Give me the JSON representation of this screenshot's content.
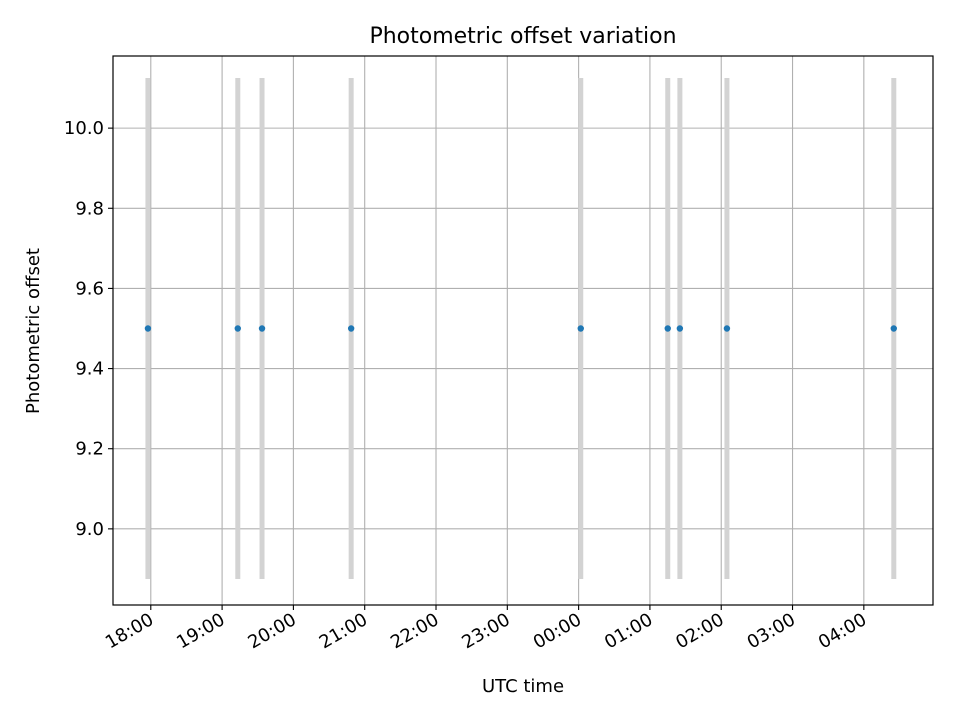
{
  "chart_data": {
    "type": "scatter",
    "title": "Photometric offset variation",
    "xlabel": "UTC time",
    "ylabel": "Photometric offset",
    "x_tick_labels": [
      "18:00",
      "19:00",
      "20:00",
      "21:00",
      "22:00",
      "23:00",
      "00:00",
      "01:00",
      "02:00",
      "03:00",
      "04:00"
    ],
    "x_ticks_hours": [
      18,
      19,
      20,
      21,
      22,
      23,
      24,
      25,
      26,
      27,
      28
    ],
    "xlim_hours": [
      17.47,
      28.97
    ],
    "y_ticks": [
      9.0,
      9.2,
      9.4,
      9.6,
      9.8,
      10.0
    ],
    "y_tick_labels": [
      "9.0",
      "9.2",
      "9.4",
      "9.6",
      "9.8",
      "10.0"
    ],
    "ylim": [
      8.81,
      10.18
    ],
    "grid": true,
    "points": {
      "times": [
        "17:57",
        "19:13",
        "19:34",
        "20:49",
        "00:02",
        "01:15",
        "01:25",
        "02:05",
        "04:25"
      ],
      "x_hours": [
        17.96,
        19.22,
        19.56,
        20.81,
        24.03,
        25.25,
        25.42,
        26.08,
        28.42
      ],
      "y": [
        9.5,
        9.5,
        9.5,
        9.5,
        9.5,
        9.5,
        9.5,
        9.5,
        9.5
      ],
      "yerr": [
        0.625,
        0.625,
        0.625,
        0.625,
        0.625,
        0.625,
        0.625,
        0.625,
        0.625
      ],
      "marker_color": "#1f77b4",
      "error_color": "#d3d3d3"
    }
  }
}
